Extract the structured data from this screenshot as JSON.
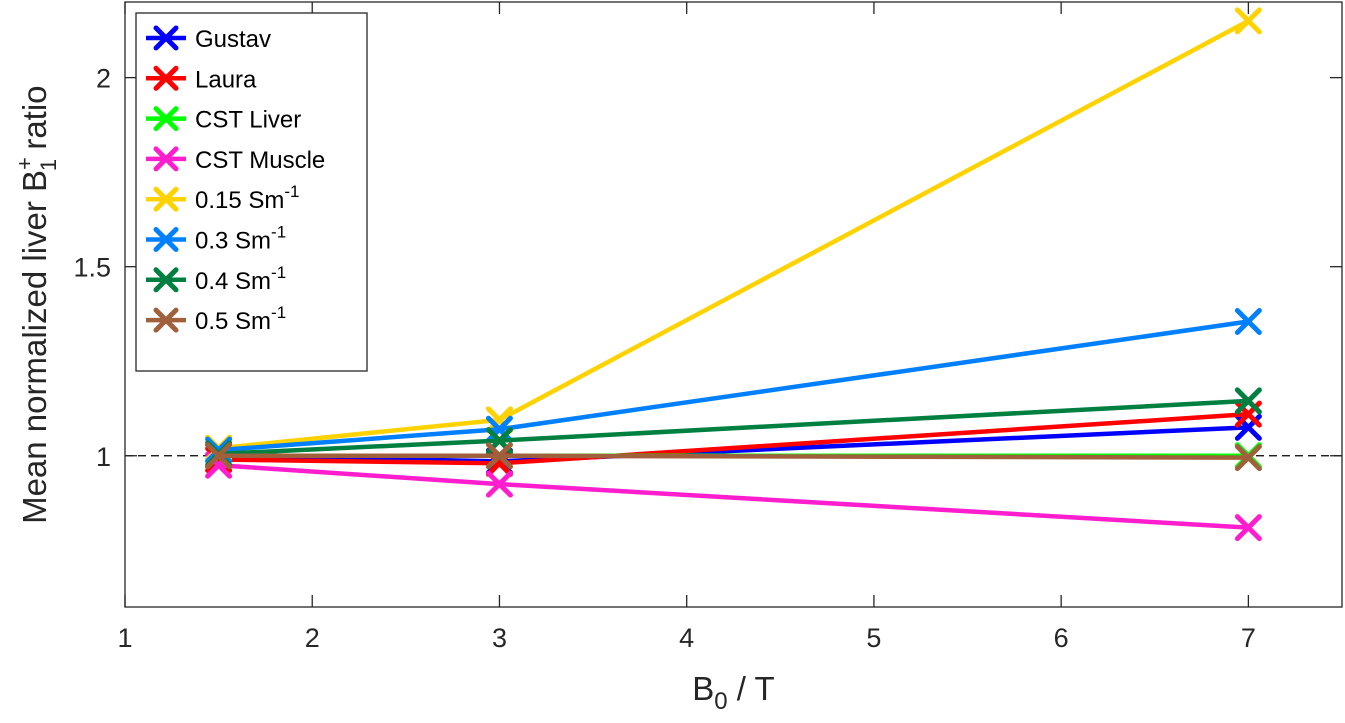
{
  "chart_data": {
    "type": "line",
    "xlabel": {
      "main": "B",
      "sub": "0",
      "rest": " / T"
    },
    "ylabel": {
      "main": "Mean normalized liver B",
      "sup": "+",
      "sub": "1",
      "rest": " ratio"
    },
    "xlim": [
      1,
      7.5
    ],
    "ylim": [
      0.6,
      2.2
    ],
    "xticks": [
      1,
      2,
      3,
      4,
      5,
      6,
      7
    ],
    "yticks": [
      1,
      1.5,
      2
    ],
    "reference_line": 1,
    "legend_position": "top-left",
    "x": [
      1.5,
      3,
      7
    ],
    "series": [
      {
        "name": "Gustav",
        "color": "#0000ff",
        "values": [
          1.0,
          0.985,
          1.075
        ]
      },
      {
        "name": "Laura",
        "color": "#ff0000",
        "values": [
          0.99,
          0.98,
          1.11
        ]
      },
      {
        "name": "CST Liver",
        "color": "#00ff00",
        "values": [
          1.0,
          1.0,
          1.0
        ]
      },
      {
        "name": "CST Muscle",
        "color": "#ff1dce",
        "values": [
          0.975,
          0.925,
          0.81
        ]
      },
      {
        "name": "0.15 Sm",
        "sup": "-1",
        "color": "#ffd200",
        "values": [
          1.02,
          1.095,
          2.15
        ]
      },
      {
        "name": "0.3 Sm",
        "sup": "-1",
        "color": "#0080ff",
        "values": [
          1.015,
          1.07,
          1.355
        ]
      },
      {
        "name": "0.4 Sm",
        "sup": "-1",
        "color": "#008040",
        "values": [
          1.005,
          1.04,
          1.145
        ]
      },
      {
        "name": "0.5 Sm",
        "sup": "-1",
        "color": "#a0603c",
        "values": [
          1.0,
          1.0,
          0.995
        ]
      }
    ]
  }
}
